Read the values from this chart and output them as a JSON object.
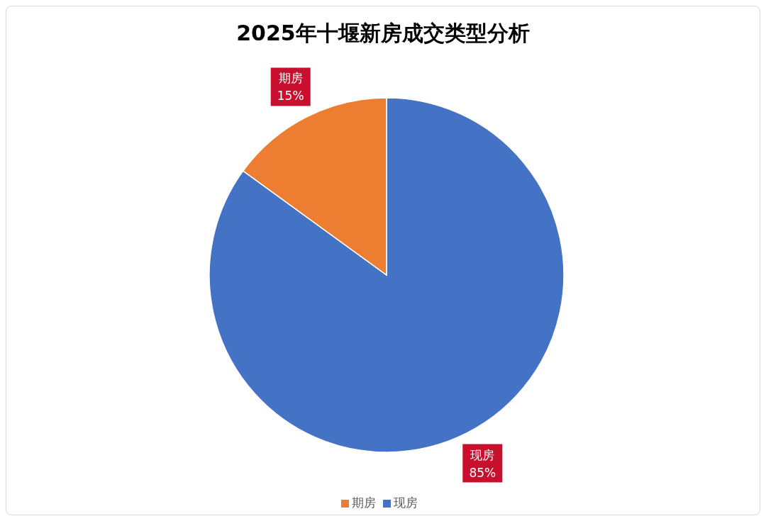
{
  "chart_data": {
    "type": "pie",
    "title": "2025年十堰新房成交类型分析",
    "categories": [
      "现房",
      "期房"
    ],
    "values": [
      85,
      15
    ],
    "colors": [
      "#4472c4",
      "#ed7d31"
    ],
    "value_labels": [
      "85%",
      "15%"
    ],
    "legend": "bottom"
  }
}
